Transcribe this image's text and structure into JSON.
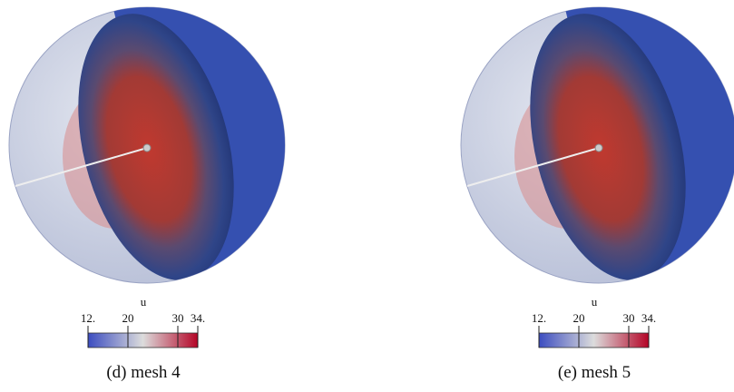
{
  "panels": [
    {
      "colorbar": {
        "title": "u",
        "range": [
          12,
          34
        ],
        "ticks": [
          {
            "value": 12,
            "label": "12."
          },
          20,
          30,
          {
            "value": 34,
            "label": "34."
          }
        ]
      },
      "caption": "(d) mesh 4"
    },
    {
      "colorbar": {
        "title": "u",
        "range": [
          12,
          34
        ],
        "ticks": [
          {
            "value": 12,
            "label": "12."
          },
          20,
          30,
          {
            "value": 34,
            "label": "34."
          }
        ]
      },
      "caption": "(e) mesh 5"
    }
  ]
}
